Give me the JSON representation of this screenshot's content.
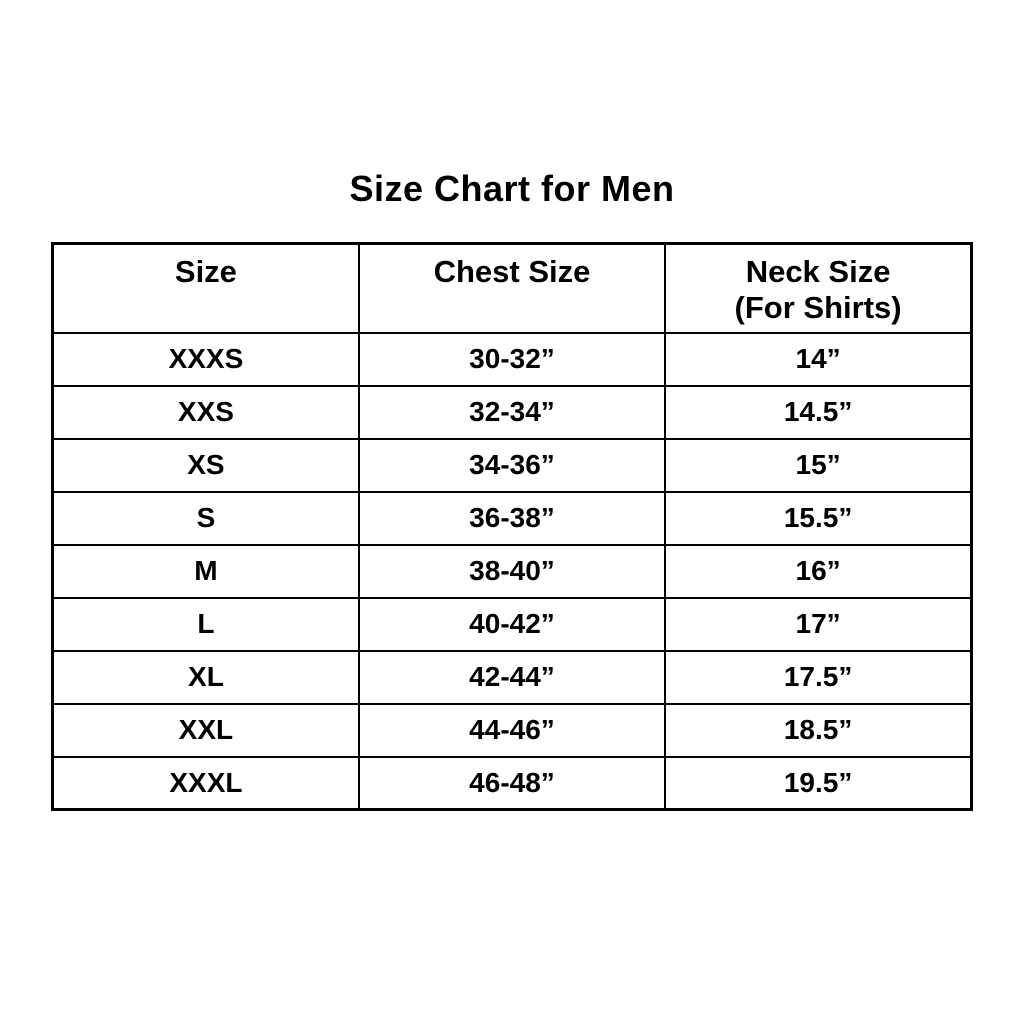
{
  "title": "Size Chart for Men",
  "colors": {
    "background": "#ffffff",
    "text": "#000000",
    "border": "#000000"
  },
  "table": {
    "headers": [
      {
        "label": "Size"
      },
      {
        "label": "Chest Size"
      },
      {
        "label": "Neck Size",
        "sublabel": "(For Shirts)"
      }
    ],
    "rows": [
      {
        "size": "XXXS",
        "chest": "30-32”",
        "neck": "14”"
      },
      {
        "size": "XXS",
        "chest": "32-34”",
        "neck": "14.5”"
      },
      {
        "size": "XS",
        "chest": "34-36”",
        "neck": "15”"
      },
      {
        "size": "S",
        "chest": "36-38”",
        "neck": "15.5”"
      },
      {
        "size": "M",
        "chest": "38-40”",
        "neck": "16”"
      },
      {
        "size": "L",
        "chest": "40-42”",
        "neck": "17”"
      },
      {
        "size": "XL",
        "chest": "42-44”",
        "neck": "17.5”"
      },
      {
        "size": "XXL",
        "chest": "44-46”",
        "neck": "18.5”"
      },
      {
        "size": "XXXL",
        "chest": "46-48”",
        "neck": "19.5”"
      }
    ]
  },
  "chart_data": {
    "type": "table",
    "title": "Size Chart for Men",
    "columns": [
      "Size",
      "Chest Size",
      "Neck Size (For Shirts)"
    ],
    "rows": [
      [
        "XXXS",
        "30-32”",
        "14”"
      ],
      [
        "XXS",
        "32-34”",
        "14.5”"
      ],
      [
        "XS",
        "34-36”",
        "15”"
      ],
      [
        "S",
        "36-38”",
        "15.5”"
      ],
      [
        "M",
        "38-40”",
        "16”"
      ],
      [
        "L",
        "40-42”",
        "17”"
      ],
      [
        "XL",
        "42-44”",
        "17.5”"
      ],
      [
        "XXL",
        "44-46”",
        "18.5”"
      ],
      [
        "XXXL",
        "46-48”",
        "19.5”"
      ]
    ],
    "layout": {
      "columns_equal_width": true,
      "header_rows": 1,
      "border_color": "#000000",
      "grid": true
    }
  }
}
